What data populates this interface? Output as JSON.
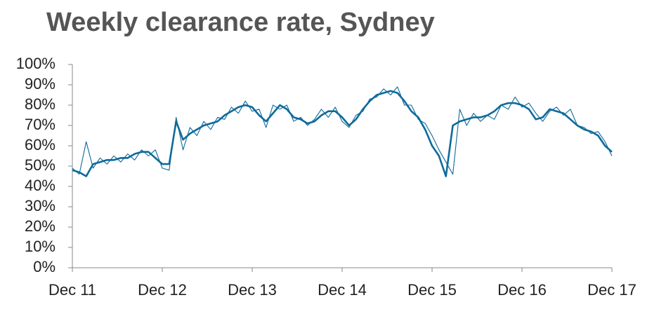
{
  "chart_data": {
    "type": "line",
    "title": "Weekly clearance rate, Sydney",
    "x": [
      0,
      4,
      8,
      12,
      16,
      20,
      24,
      28,
      32,
      36,
      40,
      44,
      48,
      52,
      56,
      60,
      64,
      68,
      72,
      76,
      80,
      84,
      88,
      92,
      96,
      100,
      104,
      108,
      112,
      116,
      120,
      124,
      128,
      132,
      136,
      140,
      144,
      148,
      152,
      156,
      160,
      164,
      168,
      172,
      176,
      180,
      184,
      188,
      192,
      196,
      200,
      204,
      208,
      212,
      216,
      220,
      224,
      228,
      232,
      236,
      240,
      244,
      248,
      252,
      256,
      260,
      264,
      268,
      272,
      276,
      280,
      284,
      288,
      292,
      296,
      300,
      304,
      308,
      312
    ],
    "series": [
      {
        "color": "#0e6a9a",
        "values": [
          49,
          46,
          62,
          49,
          54,
          51,
          55,
          52,
          56,
          53,
          58,
          55,
          58,
          49,
          48,
          74,
          58,
          69,
          65,
          72,
          68,
          74,
          73,
          79,
          76,
          82,
          77,
          78,
          69,
          80,
          78,
          80,
          72,
          74,
          70,
          73,
          78,
          74,
          79,
          72,
          69,
          75,
          77,
          83,
          84,
          88,
          85,
          89,
          80,
          80,
          73,
          71,
          65,
          58,
          52,
          46,
          78,
          70,
          76,
          72,
          75,
          73,
          80,
          78,
          84,
          79,
          81,
          76,
          72,
          77,
          79,
          75,
          78,
          70,
          69,
          66,
          67,
          62,
          55
        ]
      },
      {
        "color": "#0e6a9a",
        "values": [
          48,
          47,
          45,
          51,
          52,
          53,
          53,
          54,
          54,
          56,
          57,
          57,
          54,
          51,
          51,
          72,
          63,
          66,
          68,
          70,
          71,
          72,
          75,
          77,
          79,
          80,
          79,
          75,
          72,
          76,
          80,
          78,
          74,
          73,
          71,
          72,
          75,
          77,
          77,
          74,
          70,
          73,
          78,
          82,
          85,
          86,
          87,
          86,
          82,
          77,
          74,
          68,
          60,
          55,
          45,
          70,
          72,
          73,
          74,
          74,
          75,
          77,
          80,
          81,
          81,
          80,
          78,
          73,
          74,
          78,
          77,
          76,
          73,
          70,
          68,
          67,
          65,
          60,
          57
        ]
      }
    ],
    "xlim": [
      0,
      312
    ],
    "xticks": [
      {
        "value": 0,
        "label": "Dec 11"
      },
      {
        "value": 52,
        "label": "Dec 12"
      },
      {
        "value": 104,
        "label": "Dec 13"
      },
      {
        "value": 156,
        "label": "Dec 14"
      },
      {
        "value": 208,
        "label": "Dec 15"
      },
      {
        "value": 260,
        "label": "Dec 16"
      },
      {
        "value": 312,
        "label": "Dec 17"
      }
    ],
    "ylim": [
      0,
      100
    ],
    "yticks": [
      {
        "value": 0,
        "label": "0%"
      },
      {
        "value": 10,
        "label": "10%"
      },
      {
        "value": 20,
        "label": "20%"
      },
      {
        "value": 30,
        "label": "30%"
      },
      {
        "value": 40,
        "label": "40%"
      },
      {
        "value": 50,
        "label": "50%"
      },
      {
        "value": 60,
        "label": "60%"
      },
      {
        "value": 70,
        "label": "70%"
      },
      {
        "value": 80,
        "label": "80%"
      },
      {
        "value": 90,
        "label": "90%"
      },
      {
        "value": 100,
        "label": "100%"
      }
    ]
  }
}
